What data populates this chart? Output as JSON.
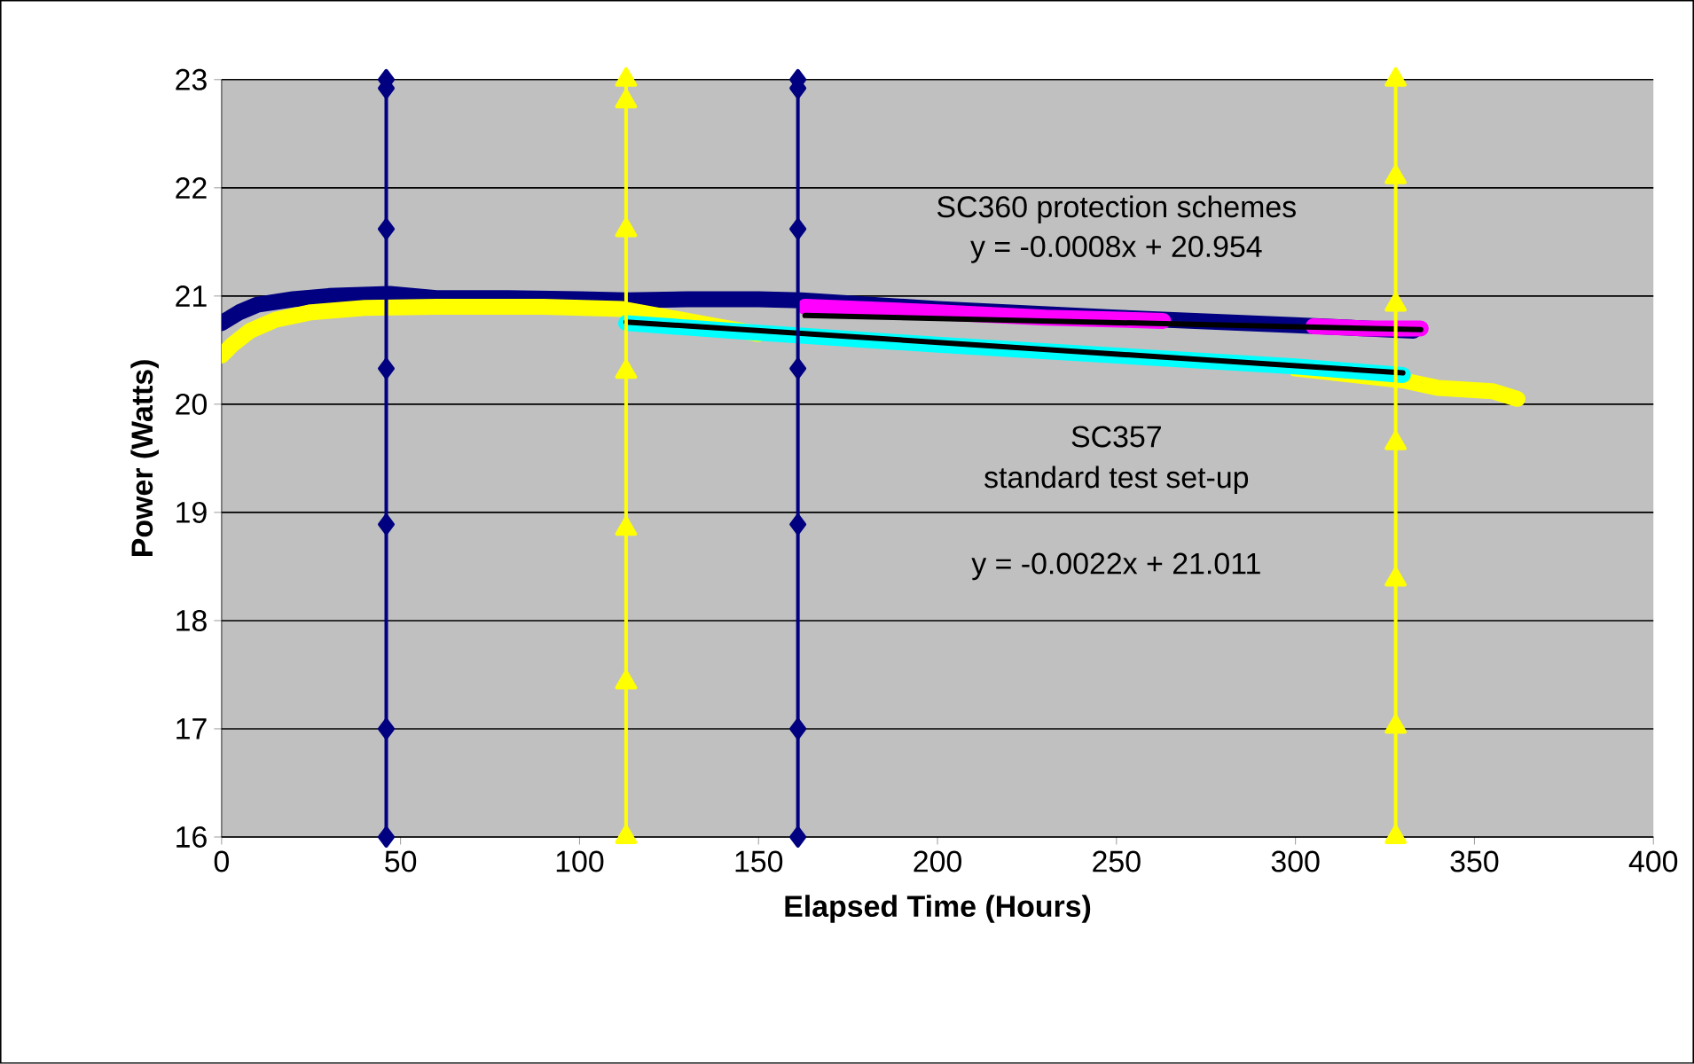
{
  "chart_data": {
    "type": "line",
    "xlabel": "Elapsed Time (Hours)",
    "ylabel": "Power (Watts)",
    "xlim": [
      0,
      400
    ],
    "xticks": [
      0,
      50,
      100,
      150,
      200,
      250,
      300,
      350,
      400
    ],
    "ylim": [
      16,
      23
    ],
    "yticks": [
      16,
      17,
      18,
      19,
      20,
      21,
      22,
      23
    ],
    "grid": "y",
    "annotations": [
      "SC360 protection schemes",
      "y = -0.0008x + 20.954",
      "SC357",
      "standard test set-up",
      "y = -0.0022x + 21.011"
    ],
    "series": [
      {
        "color": "#000080",
        "marker": "none",
        "x": [
          0,
          5,
          10,
          20,
          30,
          47,
          60,
          80,
          100,
          113,
          130,
          150,
          162,
          200,
          250,
          300,
          333
        ],
        "values": [
          20.75,
          20.85,
          20.92,
          20.97,
          21.0,
          21.02,
          20.98,
          20.98,
          20.97,
          20.96,
          20.97,
          20.97,
          20.96,
          20.88,
          20.8,
          20.73,
          20.68
        ]
      },
      {
        "color": "#ffff00",
        "marker": "none",
        "x": [
          0,
          3,
          8,
          15,
          25,
          40,
          60,
          90,
          112,
          150,
          200,
          250,
          300,
          330,
          340,
          355,
          362
        ],
        "values": [
          20.45,
          20.55,
          20.68,
          20.78,
          20.85,
          20.89,
          20.9,
          20.9,
          20.88,
          20.65,
          null,
          null,
          20.33,
          20.22,
          20.15,
          20.12,
          20.05
        ]
      },
      {
        "color": "#00ffff",
        "marker": "none",
        "x": [
          113,
          150,
          200,
          250,
          300,
          330
        ],
        "values": [
          20.75,
          20.66,
          20.55,
          20.45,
          20.35,
          20.27
        ]
      },
      {
        "color": "#ff00ff",
        "marker": "none",
        "x": [
          163,
          200,
          230,
          263,
          284,
          305,
          320,
          335
        ],
        "values": [
          20.9,
          20.85,
          20.8,
          20.77,
          null,
          20.72,
          20.7,
          20.7
        ]
      },
      {
        "color": "#000000",
        "marker": "none",
        "x": [
          163,
          335
        ],
        "values": [
          20.82,
          20.69
        ]
      },
      {
        "color": "#000000",
        "marker": "none",
        "x": [
          113,
          330
        ],
        "values": [
          20.76,
          20.29
        ]
      },
      {
        "color": "#000080",
        "marker": "diamond",
        "x": [
          46,
          46,
          46,
          46,
          46,
          46,
          46
        ],
        "values": [
          16,
          17.0,
          18.89,
          20.33,
          21.62,
          22.92,
          23
        ]
      },
      {
        "color": "#000080",
        "marker": "diamond",
        "x": [
          161,
          161,
          161,
          161,
          161,
          161,
          161
        ],
        "values": [
          16,
          17.0,
          18.89,
          20.33,
          21.62,
          22.92,
          23
        ]
      },
      {
        "color": "#ffff00",
        "marker": "triangle",
        "x": [
          113,
          113,
          113,
          113,
          113,
          113,
          113
        ],
        "values": [
          16,
          17.43,
          18.85,
          20.3,
          21.61,
          22.8,
          23
        ]
      },
      {
        "color": "#ffff00",
        "marker": "triangle",
        "x": [
          328,
          328,
          328,
          328,
          328,
          328,
          328
        ],
        "values": [
          16,
          17.02,
          18.38,
          19.64,
          20.92,
          22.1,
          23
        ]
      }
    ]
  }
}
